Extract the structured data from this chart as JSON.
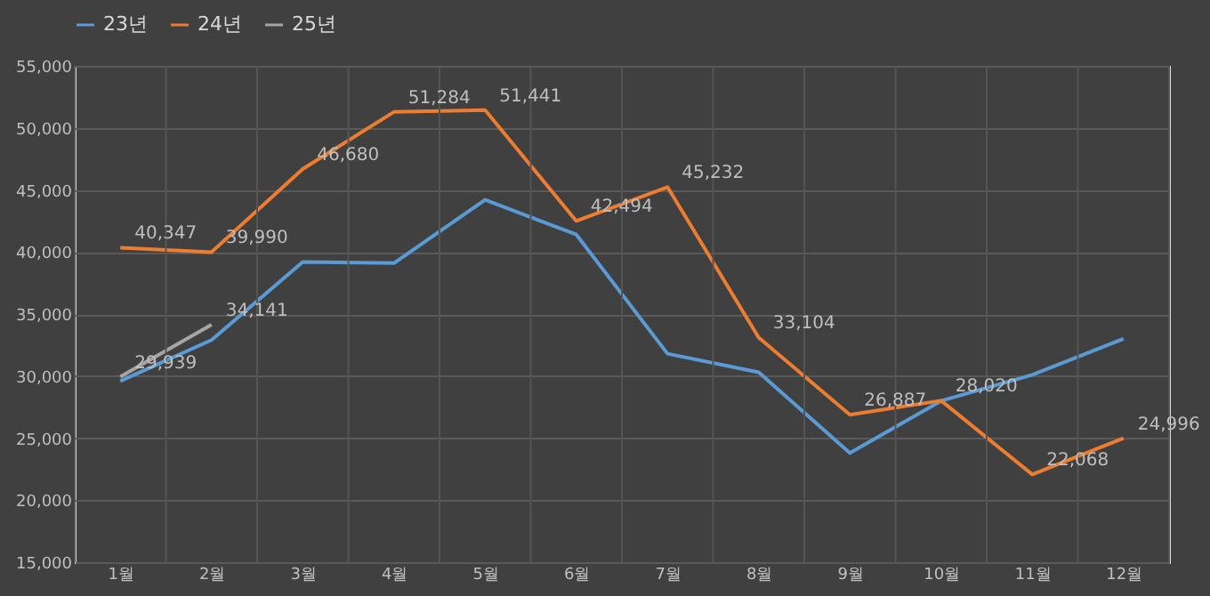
{
  "chart_data": {
    "type": "line",
    "categories": [
      "1월",
      "2월",
      "3월",
      "4월",
      "5월",
      "6월",
      "7월",
      "8월",
      "9월",
      "10월",
      "11월",
      "12월"
    ],
    "series": [
      {
        "name": "23년",
        "color": "#5b9bd5",
        "values": [
          29600,
          32900,
          39200,
          39100,
          44200,
          41400,
          31800,
          30300,
          23800,
          28000,
          30100,
          33000
        ]
      },
      {
        "name": "24년",
        "color": "#ed7d31",
        "values": [
          40347,
          39990,
          46680,
          51284,
          51441,
          42494,
          45232,
          33104,
          26887,
          28020,
          22068,
          24996
        ],
        "value_labels": [
          "40,347",
          "39,990",
          "46,680",
          "51,284",
          "51,441",
          "42,494",
          "45,232",
          "33,104",
          "26,887",
          "28,020",
          "22,068",
          "24,996"
        ]
      },
      {
        "name": "25년",
        "color": "#a5a5a5",
        "values": [
          29939,
          34141,
          null,
          null,
          null,
          null,
          null,
          null,
          null,
          null,
          null,
          null
        ],
        "value_labels": [
          "29,939",
          "34,141",
          null,
          null,
          null,
          null,
          null,
          null,
          null,
          null,
          null,
          null
        ]
      }
    ],
    "ylim": [
      15000,
      55000
    ],
    "yticks": [
      {
        "value": 15000,
        "label": "15,000"
      },
      {
        "value": 20000,
        "label": "20,000"
      },
      {
        "value": 25000,
        "label": "25,000"
      },
      {
        "value": 30000,
        "label": "30,000"
      },
      {
        "value": 35000,
        "label": "35,000"
      },
      {
        "value": 40000,
        "label": "40,000"
      },
      {
        "value": 45000,
        "label": "45,000"
      },
      {
        "value": 50000,
        "label": "50,000"
      },
      {
        "value": 55000,
        "label": "55,000"
      }
    ],
    "grid": true,
    "legend": "top",
    "marker": "none",
    "line_style": "solid"
  }
}
